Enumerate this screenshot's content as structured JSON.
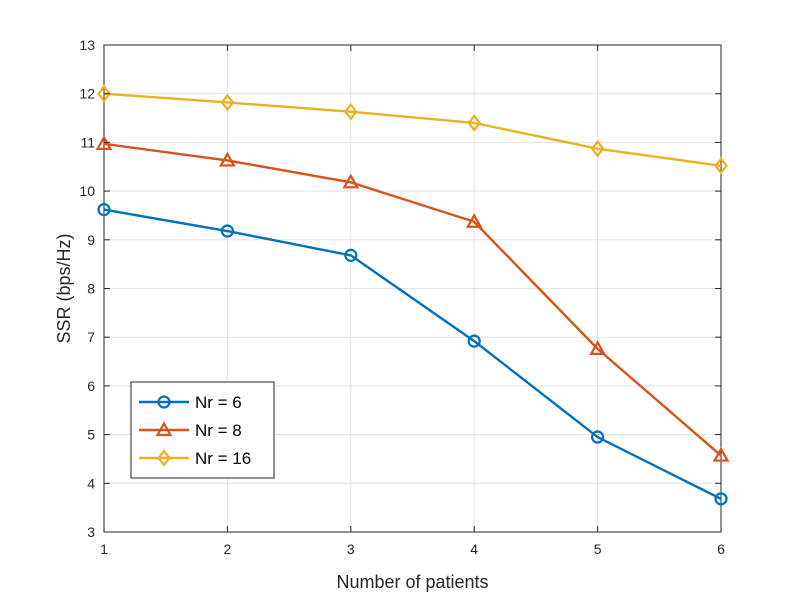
{
  "chart_data": {
    "type": "line",
    "x": [
      1,
      2,
      3,
      4,
      5,
      6
    ],
    "xlabel": "Number of patients",
    "ylabel": "SSR (bps/Hz)",
    "xlim": [
      1,
      6
    ],
    "ylim": [
      3,
      13
    ],
    "xticks": [
      "1",
      "2",
      "3",
      "4",
      "5",
      "6"
    ],
    "yticks": [
      "3",
      "4",
      "5",
      "6",
      "7",
      "8",
      "9",
      "10",
      "11",
      "12",
      "13"
    ],
    "grid": true,
    "legend_position": "bottom-left",
    "series": [
      {
        "name": "Nr = 6",
        "values": [
          9.62,
          9.18,
          8.68,
          6.92,
          4.95,
          3.68
        ],
        "color": "#0072BD",
        "marker": "circle"
      },
      {
        "name": "Nr = 8",
        "values": [
          10.97,
          10.63,
          10.18,
          9.37,
          6.76,
          4.57
        ],
        "color": "#D95319",
        "marker": "triangle"
      },
      {
        "name": "Nr = 16",
        "values": [
          12.0,
          11.82,
          11.63,
          11.4,
          10.87,
          10.52
        ],
        "color": "#EDB120",
        "marker": "diamond"
      }
    ]
  }
}
